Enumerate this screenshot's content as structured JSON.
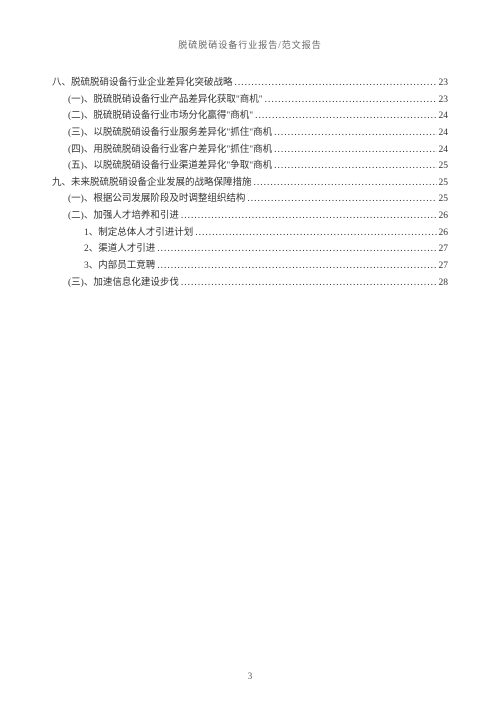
{
  "header": "脱硫脱硝设备行业报告/范文报告",
  "page_number": "3",
  "colors": {
    "background": "#ffffff",
    "text": "#333333",
    "header_text": "#666666"
  },
  "typography": {
    "body_fontsize": 9.5,
    "header_fontsize": 9,
    "font_family": "SimSun"
  },
  "toc": [
    {
      "level": 0,
      "label": "八、脱硫脱硝设备行业企业差异化突破战略",
      "page": "23"
    },
    {
      "level": 1,
      "label": "(一)、脱硫脱硝设备行业产品差异化获取\"商机\"",
      "page": "23"
    },
    {
      "level": 1,
      "label": "(二)、脱硫脱硝设备行业市场分化赢得\"商机\"",
      "page": "24"
    },
    {
      "level": 1,
      "label": "(三)、以脱硫脱硝设备行业服务差异化\"抓住\"商机",
      "page": "24"
    },
    {
      "level": 1,
      "label": "(四)、用脱硫脱硝设备行业客户差异化\"抓住\"商机",
      "page": "24"
    },
    {
      "level": 1,
      "label": "(五)、以脱硫脱硝设备行业渠道差异化\"争取\"商机",
      "page": "25"
    },
    {
      "level": 0,
      "label": "九、未来脱硫脱硝设备企业发展的战略保障措施",
      "page": "25"
    },
    {
      "level": 1,
      "label": "(一)、根据公司发展阶段及时调整组织结构",
      "page": "25"
    },
    {
      "level": 1,
      "label": "(二)、加强人才培养和引进",
      "page": "26"
    },
    {
      "level": 2,
      "label": "1、制定总体人才引进计划",
      "page": "26"
    },
    {
      "level": 2,
      "label": "2、渠道人才引进",
      "page": "27"
    },
    {
      "level": 2,
      "label": "3、内部员工竞聘",
      "page": "27"
    },
    {
      "level": 1,
      "label": "(三)、加速信息化建设步伐",
      "page": "28"
    }
  ]
}
